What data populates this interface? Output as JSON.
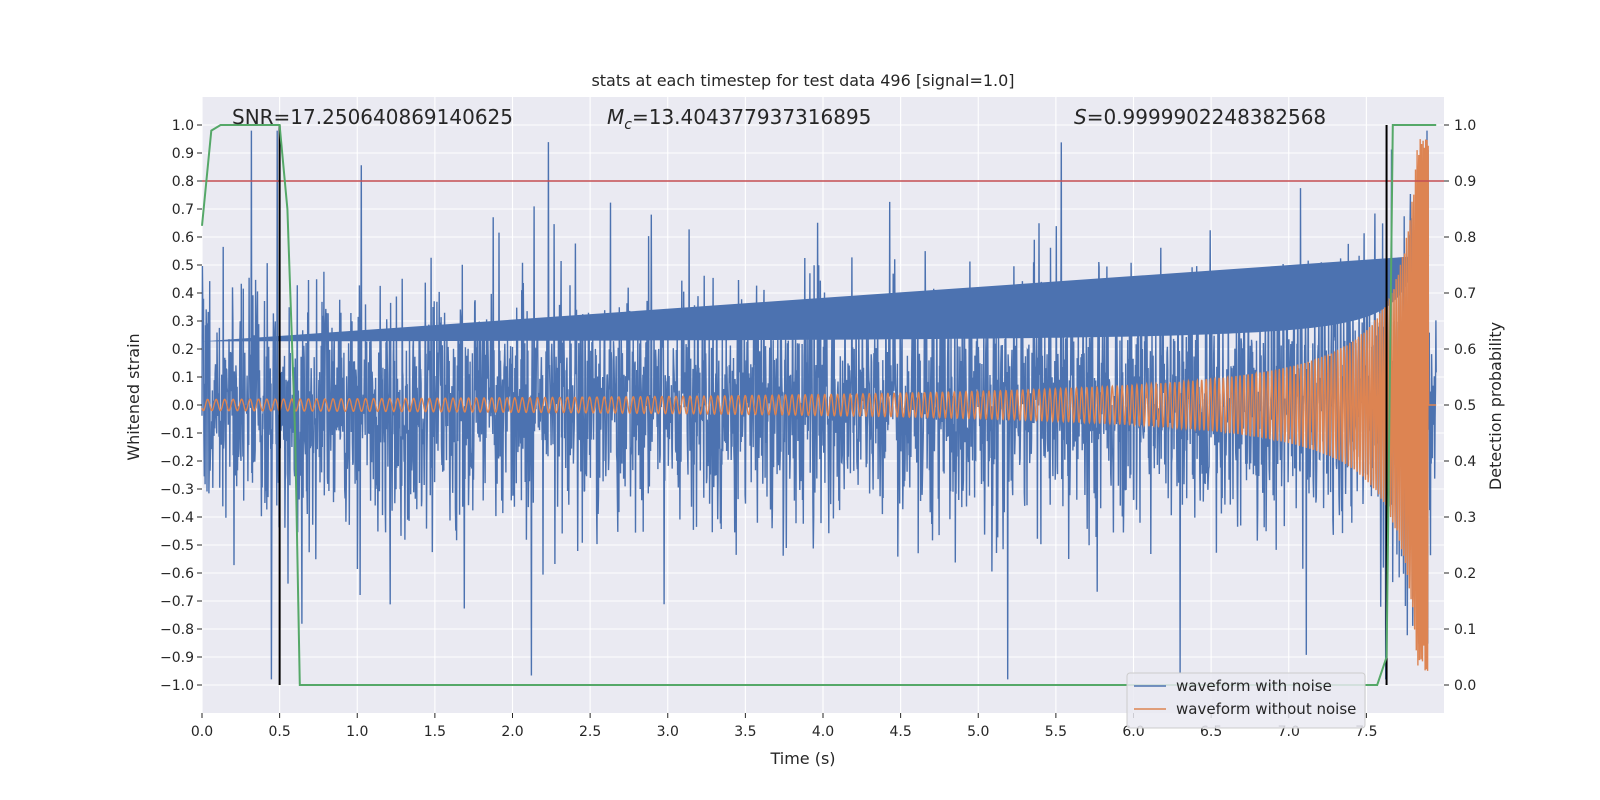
{
  "chart_data": {
    "type": "line",
    "title": "stats at each timestep for test data 496 [signal=1.0]",
    "xlabel": "Time (s)",
    "ylabel": "Whitened strain",
    "y2label": "Detection probability",
    "xlim": [
      0.0,
      8.0
    ],
    "ylim": [
      -1.1,
      1.1
    ],
    "y2lim": [
      -0.05,
      1.05
    ],
    "xticks": [
      0.0,
      0.5,
      1.0,
      1.5,
      2.0,
      2.5,
      3.0,
      3.5,
      4.0,
      4.5,
      5.0,
      5.5,
      6.0,
      6.5,
      7.0,
      7.5
    ],
    "yticks": [
      -1.0,
      -0.9,
      -0.8,
      -0.7,
      -0.6,
      -0.5,
      -0.4,
      -0.3,
      -0.2,
      -0.1,
      0.0,
      0.1,
      0.2,
      0.3,
      0.4,
      0.5,
      0.6,
      0.7,
      0.8,
      0.9,
      1.0
    ],
    "y2ticks": [
      0.0,
      0.1,
      0.2,
      0.3,
      0.4,
      0.5,
      0.6,
      0.7,
      0.8,
      0.9,
      1.0
    ],
    "annotations": {
      "snr": "SNR=17.250640869140625",
      "mc_symbol": "M",
      "mc_sub": "c",
      "mc_value": "=13.404377937316895",
      "s_symbol": "S",
      "s_value": "=0.9999902248382568"
    },
    "threshold_y2": 0.9,
    "vertical_markers": [
      0.5,
      7.63
    ],
    "series": [
      {
        "name": "waveform with noise",
        "color": "#4c72b0",
        "axis": "y",
        "description": "noisy whitened strain, amplitude roughly ±0.6 with spikes to ±0.98, sampled densely from 0.0 to 7.9 s"
      },
      {
        "name": "waveform without noise",
        "color": "#dd8452",
        "axis": "y",
        "description": "chirp: amplitude ~0.02 at 0 s rising to ~0.94 at merger 7.9 s, frequency increasing"
      },
      {
        "name": "detection probability",
        "color": "#55a868",
        "axis": "y2",
        "x": [
          0.0,
          0.06,
          0.12,
          0.5,
          0.55,
          0.6,
          0.63,
          7.57,
          7.63,
          7.67,
          7.72,
          7.95
        ],
        "y": [
          0.82,
          0.99,
          1.0,
          1.0,
          0.85,
          0.45,
          0.0,
          0.0,
          0.05,
          1.0,
          1.0,
          1.0
        ]
      },
      {
        "name": "threshold",
        "color": "#c44e52",
        "axis": "y2",
        "y": 0.9
      }
    ],
    "legend": {
      "placement": "lower-right",
      "entries": [
        "waveform with noise",
        "waveform without noise"
      ]
    }
  }
}
